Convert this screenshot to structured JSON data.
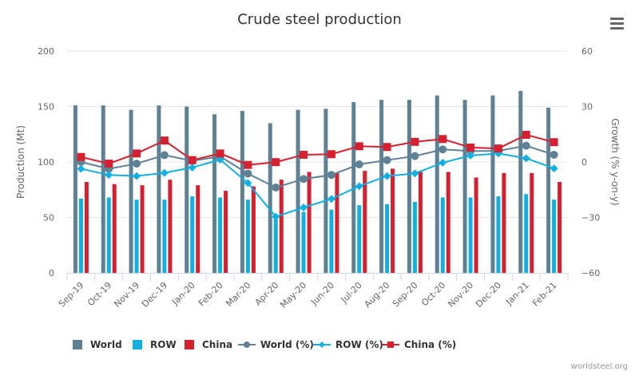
{
  "menu_icon": "hamburger-menu-icon",
  "credit": "worldsteel.org",
  "colors": {
    "world": "#5f8196",
    "row": "#10b0e3",
    "china": "#d6202f",
    "grid": "#e6e6e6",
    "axis": "#ccd6eb"
  },
  "chart_data": {
    "type": "bar",
    "title": "Crude steel production",
    "xlabel": "",
    "ylabel": "Production (Mt)",
    "y2label": "Growth (% y-on-y)",
    "ylim": [
      0,
      200
    ],
    "y2lim": [
      -60,
      60
    ],
    "yticks": [
      "0",
      "50",
      "100",
      "150",
      "200"
    ],
    "y2ticks": [
      "−60",
      "−30",
      "0",
      "30",
      "60"
    ],
    "yticks_values": [
      0,
      50,
      100,
      150,
      200
    ],
    "y2ticks_values": [
      -60,
      -30,
      0,
      30,
      60
    ],
    "grid": true,
    "legend": "bottom-center",
    "categories": [
      "Sep-19",
      "Oct-19",
      "Nov-19",
      "Dec-19",
      "Jan-20",
      "Feb-20",
      "Mar-20",
      "Apr-20",
      "May-20",
      "Jun-20",
      "Jul-20",
      "Aug-20",
      "Sep-20",
      "Oct-20",
      "Nov-20",
      "Dec-20",
      "Jan-21",
      "Feb-21"
    ],
    "series": [
      {
        "name": "World",
        "type": "bar",
        "axis": "left",
        "color_key": "world",
        "values": [
          151,
          151,
          147,
          151,
          150,
          143,
          146,
          135,
          147,
          148,
          154,
          156,
          156,
          160,
          156,
          160,
          164,
          149
        ]
      },
      {
        "name": "ROW",
        "type": "bar",
        "axis": "left",
        "color_key": "row",
        "values": [
          67,
          68,
          66,
          66,
          69,
          68,
          66,
          52,
          55,
          57,
          61,
          62,
          64,
          68,
          68,
          69,
          71,
          66
        ]
      },
      {
        "name": "China",
        "type": "bar",
        "axis": "left",
        "color_key": "china",
        "values": [
          82,
          80,
          79,
          84,
          79,
          74,
          78,
          84,
          91,
          90,
          92,
          94,
          91,
          91,
          86,
          90,
          90,
          82
        ]
      },
      {
        "name": "World (%)",
        "type": "line",
        "axis": "right",
        "marker": "circle",
        "color_key": "world",
        "values": [
          0.0,
          -3.7,
          -0.9,
          3.7,
          0.6,
          3.0,
          -6.3,
          -13.8,
          -9.2,
          -7.0,
          -1.3,
          1.0,
          3.2,
          6.8,
          5.9,
          6.0,
          8.8,
          3.9
        ]
      },
      {
        "name": "ROW (%)",
        "type": "line",
        "axis": "right",
        "marker": "diamond",
        "color_key": "row",
        "values": [
          -3.7,
          -7.0,
          -7.6,
          -5.9,
          -3.0,
          1.3,
          -11.4,
          -29.6,
          -24.6,
          -20.0,
          -13.1,
          -7.6,
          -6.2,
          -0.4,
          3.5,
          4.6,
          2.0,
          -3.5
        ]
      },
      {
        "name": "China (%)",
        "type": "line",
        "axis": "right",
        "marker": "square",
        "color_key": "china",
        "values": [
          2.7,
          -0.9,
          4.6,
          11.6,
          1.0,
          4.6,
          -1.6,
          -0.1,
          3.9,
          4.2,
          8.5,
          8.1,
          10.9,
          12.4,
          7.8,
          7.3,
          14.7,
          10.7
        ]
      }
    ]
  }
}
